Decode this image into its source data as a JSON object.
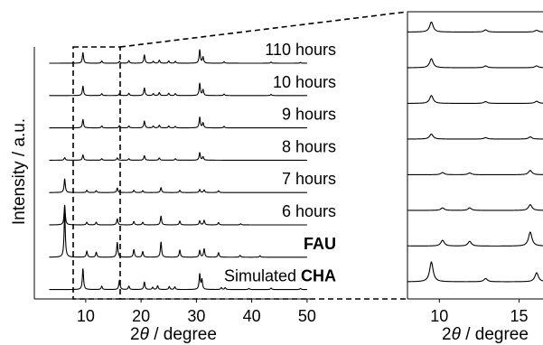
{
  "chart_data": [
    {
      "type": "line",
      "panel": "main",
      "xlabel_prefix": "2",
      "xlabel_symbol": "θ",
      "xlabel_suffix": " / degree",
      "ylabel": "Intensity / a.u.",
      "xlim": [
        3,
        51
      ],
      "xticks": [
        10,
        20,
        30,
        40,
        50
      ],
      "grid": false,
      "stacked": true,
      "series": [
        {
          "name": "110 hours",
          "bold_part": "",
          "peaks": [
            [
              9.5,
              0.28
            ],
            [
              12.9,
              0.06
            ],
            [
              16.1,
              0.05
            ],
            [
              17.8,
              0.07
            ],
            [
              20.6,
              0.22
            ],
            [
              22.2,
              0.05
            ],
            [
              23.3,
              0.08
            ],
            [
              25.0,
              0.06
            ],
            [
              26.2,
              0.05
            ],
            [
              30.6,
              0.35
            ],
            [
              31.2,
              0.16
            ],
            [
              35.0,
              0.04
            ],
            [
              43.5,
              0.03
            ],
            [
              48.8,
              0.02
            ]
          ]
        },
        {
          "name": "10 hours",
          "bold_part": "",
          "peaks": [
            [
              9.5,
              0.25
            ],
            [
              12.9,
              0.05
            ],
            [
              16.1,
              0.05
            ],
            [
              17.8,
              0.06
            ],
            [
              20.6,
              0.2
            ],
            [
              22.2,
              0.05
            ],
            [
              23.3,
              0.08
            ],
            [
              25.0,
              0.06
            ],
            [
              26.2,
              0.05
            ],
            [
              30.6,
              0.32
            ],
            [
              31.2,
              0.15
            ],
            [
              35.0,
              0.04
            ],
            [
              43.5,
              0.03
            ]
          ]
        },
        {
          "name": "9 hours",
          "bold_part": "",
          "peaks": [
            [
              9.5,
              0.22
            ],
            [
              12.9,
              0.05
            ],
            [
              16.1,
              0.06
            ],
            [
              17.8,
              0.05
            ],
            [
              20.6,
              0.18
            ],
            [
              22.2,
              0.05
            ],
            [
              23.3,
              0.07
            ],
            [
              25.0,
              0.05
            ],
            [
              26.2,
              0.04
            ],
            [
              30.6,
              0.28
            ],
            [
              31.2,
              0.13
            ],
            [
              35.0,
              0.04
            ]
          ]
        },
        {
          "name": "8 hours",
          "bold_part": "",
          "peaks": [
            [
              6.2,
              0.07
            ],
            [
              9.5,
              0.14
            ],
            [
              12.9,
              0.04
            ],
            [
              15.7,
              0.06
            ],
            [
              17.8,
              0.04
            ],
            [
              20.6,
              0.12
            ],
            [
              23.3,
              0.06
            ],
            [
              26.2,
              0.04
            ],
            [
              30.6,
              0.2
            ],
            [
              31.2,
              0.09
            ]
          ]
        },
        {
          "name": "7 hours",
          "bold_part": "",
          "peaks": [
            [
              6.2,
              0.36
            ],
            [
              10.2,
              0.06
            ],
            [
              11.9,
              0.05
            ],
            [
              15.7,
              0.12
            ],
            [
              18.7,
              0.06
            ],
            [
              20.3,
              0.05
            ],
            [
              23.6,
              0.13
            ],
            [
              27.0,
              0.06
            ],
            [
              30.6,
              0.08
            ],
            [
              31.4,
              0.07
            ],
            [
              34.0,
              0.05
            ]
          ]
        },
        {
          "name": "6 hours",
          "bold_part": "",
          "peaks": [
            [
              6.2,
              0.52
            ],
            [
              10.2,
              0.07
            ],
            [
              11.9,
              0.07
            ],
            [
              15.7,
              0.16
            ],
            [
              18.7,
              0.09
            ],
            [
              20.3,
              0.07
            ],
            [
              23.6,
              0.23
            ],
            [
              27.0,
              0.1
            ],
            [
              30.6,
              0.11
            ],
            [
              31.4,
              0.12
            ],
            [
              34.0,
              0.06
            ],
            [
              38.0,
              0.03
            ]
          ]
        },
        {
          "name": "",
          "bold_part": "FAU",
          "peaks": [
            [
              6.2,
              1.18
            ],
            [
              10.2,
              0.16
            ],
            [
              11.9,
              0.13
            ],
            [
              15.7,
              0.39
            ],
            [
              18.7,
              0.2
            ],
            [
              20.3,
              0.15
            ],
            [
              23.6,
              0.4
            ],
            [
              27.0,
              0.19
            ],
            [
              30.6,
              0.18
            ],
            [
              31.4,
              0.22
            ],
            [
              34.0,
              0.12
            ],
            [
              37.9,
              0.05
            ],
            [
              41.5,
              0.04
            ]
          ]
        },
        {
          "name": "Simulated ",
          "bold_part": "CHA",
          "peaks": [
            [
              9.5,
              0.55
            ],
            [
              12.9,
              0.09
            ],
            [
              16.1,
              0.25
            ],
            [
              17.8,
              0.09
            ],
            [
              20.6,
              0.2
            ],
            [
              22.1,
              0.06
            ],
            [
              23.0,
              0.1
            ],
            [
              25.1,
              0.08
            ],
            [
              26.1,
              0.07
            ],
            [
              30.6,
              0.4
            ],
            [
              31.0,
              0.25
            ],
            [
              34.5,
              0.05
            ],
            [
              35.2,
              0.05
            ],
            [
              39.5,
              0.03
            ],
            [
              43.5,
              0.04
            ],
            [
              48.8,
              0.03
            ]
          ]
        }
      ]
    },
    {
      "type": "line",
      "panel": "zoom-inset",
      "xlabel_prefix": "2",
      "xlabel_symbol": "θ",
      "xlabel_suffix": " / degree",
      "xlim": [
        8,
        16.5
      ],
      "xticks": [
        10,
        15
      ],
      "zoom_source_range": [
        8,
        16.5
      ],
      "grid": false,
      "stacked": true
    }
  ],
  "colors": {
    "line": "#000000",
    "background": "#ffffff"
  }
}
